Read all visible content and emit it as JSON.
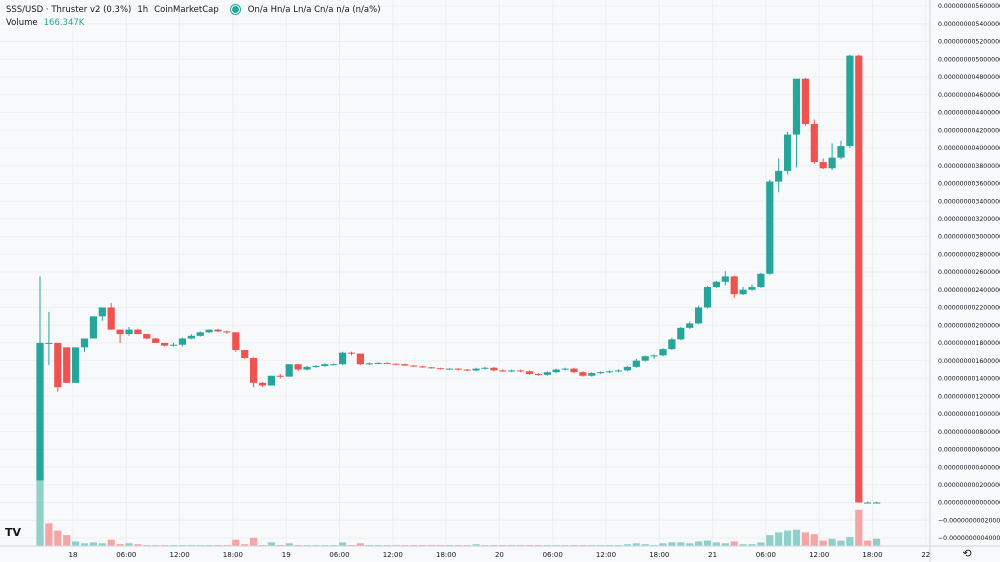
{
  "legend": {
    "symbol": "SSS/USD · Thruster v2 (0.3%)",
    "interval": "1h",
    "source": "CoinMarketCap",
    "ohlc": "On/a Hn/a Ln/a Cn/a n/a (n/a%)",
    "volume_label": "Volume",
    "volume_value": "166.347K"
  },
  "icons": {
    "logo": "tradingview-logo-icon",
    "settings": "auto-scale-settings-icon"
  },
  "logo_text": "TV",
  "colors": {
    "up": "#26a69a",
    "down": "#ef5350",
    "up_volume": "#8fd0c9",
    "down_volume": "#f5a5a3",
    "grid": "#eceef2",
    "background": "#f8f9fa"
  },
  "chart_data": {
    "type": "candlestick",
    "y_axis_ticks": [
      "0.000000005600000",
      "0.000000005400000",
      "0.000000005200000",
      "0.000000005000000",
      "0.000000004800000",
      "0.000000004600000",
      "0.000000004400000",
      "0.000000004200000",
      "0.000000004000000",
      "0.000000003800000",
      "0.000000003600000",
      "0.000000003400000",
      "0.000000003200000",
      "0.000000003000000",
      "0.000000002800000",
      "0.000000002600000",
      "0.000000002400000",
      "0.000000002200000",
      "0.000000002000000",
      "0.000000001800000",
      "0.000000001600000",
      "0.000000001400000",
      "0.000000001200000",
      "0.000000001000000",
      "0.000000000800000",
      "0.000000000600000",
      "0.000000000400000",
      "0.000000000200000",
      "0.000000000000000",
      "−0.000000000200000",
      "−0.000000000400000"
    ],
    "ylim": [
      -0.4,
      5.6
    ],
    "y_unit_note": "values in units of 1e-9 USD",
    "x_axis_labels": [
      "18",
      "06:00",
      "12:00",
      "18:00",
      "19",
      "06:00",
      "12:00",
      "18:00",
      "20",
      "06:00",
      "12:00",
      "18:00",
      "21",
      "06:00",
      "12:00",
      "18:00",
      "22"
    ],
    "candles": [
      {
        "o": 0.25,
        "h": 2.55,
        "l": 0.25,
        "c": 1.8
      },
      {
        "o": 1.8,
        "h": 2.15,
        "l": 1.55,
        "c": 1.8
      },
      {
        "o": 1.8,
        "h": 1.8,
        "l": 1.25,
        "c": 1.3
      },
      {
        "o": 1.75,
        "h": 1.75,
        "l": 1.35,
        "c": 1.35
      },
      {
        "o": 1.35,
        "h": 1.75,
        "l": 1.35,
        "c": 1.75
      },
      {
        "o": 1.75,
        "h": 1.85,
        "l": 1.7,
        "c": 1.85
      },
      {
        "o": 1.85,
        "h": 2.1,
        "l": 1.85,
        "c": 2.1
      },
      {
        "o": 2.1,
        "h": 2.2,
        "l": 2.05,
        "c": 2.2
      },
      {
        "o": 2.2,
        "h": 2.25,
        "l": 1.95,
        "c": 1.95
      },
      {
        "o": 1.95,
        "h": 1.95,
        "l": 1.8,
        "c": 1.9
      },
      {
        "o": 1.9,
        "h": 1.98,
        "l": 1.88,
        "c": 1.95
      },
      {
        "o": 1.95,
        "h": 1.96,
        "l": 1.9,
        "c": 1.9
      },
      {
        "o": 1.9,
        "h": 1.9,
        "l": 1.84,
        "c": 1.85
      },
      {
        "o": 1.85,
        "h": 1.86,
        "l": 1.8,
        "c": 1.8
      },
      {
        "o": 1.8,
        "h": 1.8,
        "l": 1.76,
        "c": 1.77
      },
      {
        "o": 1.77,
        "h": 1.8,
        "l": 1.76,
        "c": 1.78
      },
      {
        "o": 1.78,
        "h": 1.86,
        "l": 1.76,
        "c": 1.85
      },
      {
        "o": 1.85,
        "h": 1.9,
        "l": 1.84,
        "c": 1.88
      },
      {
        "o": 1.88,
        "h": 1.93,
        "l": 1.87,
        "c": 1.92
      },
      {
        "o": 1.92,
        "h": 1.95,
        "l": 1.91,
        "c": 1.95
      },
      {
        "o": 1.95,
        "h": 1.96,
        "l": 1.92,
        "c": 1.93
      },
      {
        "o": 1.93,
        "h": 1.94,
        "l": 1.9,
        "c": 1.92
      },
      {
        "o": 1.92,
        "h": 1.92,
        "l": 1.7,
        "c": 1.72
      },
      {
        "o": 1.72,
        "h": 1.72,
        "l": 1.62,
        "c": 1.63
      },
      {
        "o": 1.63,
        "h": 1.64,
        "l": 1.3,
        "c": 1.35
      },
      {
        "o": 1.35,
        "h": 1.36,
        "l": 1.3,
        "c": 1.32
      },
      {
        "o": 1.32,
        "h": 1.43,
        "l": 1.32,
        "c": 1.43
      },
      {
        "o": 1.43,
        "h": 1.45,
        "l": 1.4,
        "c": 1.42
      },
      {
        "o": 1.42,
        "h": 1.56,
        "l": 1.42,
        "c": 1.56
      },
      {
        "o": 1.56,
        "h": 1.56,
        "l": 1.48,
        "c": 1.5
      },
      {
        "o": 1.5,
        "h": 1.54,
        "l": 1.49,
        "c": 1.53
      },
      {
        "o": 1.53,
        "h": 1.55,
        "l": 1.52,
        "c": 1.54
      },
      {
        "o": 1.54,
        "h": 1.57,
        "l": 1.53,
        "c": 1.56
      },
      {
        "o": 1.56,
        "h": 1.57,
        "l": 1.55,
        "c": 1.56
      },
      {
        "o": 1.56,
        "h": 1.7,
        "l": 1.55,
        "c": 1.69
      },
      {
        "o": 1.69,
        "h": 1.7,
        "l": 1.66,
        "c": 1.68
      },
      {
        "o": 1.68,
        "h": 1.68,
        "l": 1.55,
        "c": 1.56
      },
      {
        "o": 1.56,
        "h": 1.58,
        "l": 1.55,
        "c": 1.57
      },
      {
        "o": 1.57,
        "h": 1.58,
        "l": 1.56,
        "c": 1.575
      },
      {
        "o": 1.575,
        "h": 1.58,
        "l": 1.56,
        "c": 1.565
      },
      {
        "o": 1.565,
        "h": 1.57,
        "l": 1.55,
        "c": 1.56
      },
      {
        "o": 1.56,
        "h": 1.565,
        "l": 1.54,
        "c": 1.545
      },
      {
        "o": 1.545,
        "h": 1.55,
        "l": 1.53,
        "c": 1.535
      },
      {
        "o": 1.535,
        "h": 1.54,
        "l": 1.52,
        "c": 1.525
      },
      {
        "o": 1.525,
        "h": 1.53,
        "l": 1.51,
        "c": 1.515
      },
      {
        "o": 1.515,
        "h": 1.52,
        "l": 1.5,
        "c": 1.505
      },
      {
        "o": 1.505,
        "h": 1.515,
        "l": 1.5,
        "c": 1.51
      },
      {
        "o": 1.51,
        "h": 1.515,
        "l": 1.49,
        "c": 1.5
      },
      {
        "o": 1.5,
        "h": 1.505,
        "l": 1.48,
        "c": 1.49
      },
      {
        "o": 1.49,
        "h": 1.52,
        "l": 1.48,
        "c": 1.51
      },
      {
        "o": 1.51,
        "h": 1.53,
        "l": 1.5,
        "c": 1.52
      },
      {
        "o": 1.52,
        "h": 1.53,
        "l": 1.48,
        "c": 1.49
      },
      {
        "o": 1.49,
        "h": 1.5,
        "l": 1.47,
        "c": 1.48
      },
      {
        "o": 1.48,
        "h": 1.5,
        "l": 1.47,
        "c": 1.49
      },
      {
        "o": 1.49,
        "h": 1.5,
        "l": 1.47,
        "c": 1.48
      },
      {
        "o": 1.48,
        "h": 1.49,
        "l": 1.44,
        "c": 1.45
      },
      {
        "o": 1.45,
        "h": 1.46,
        "l": 1.43,
        "c": 1.44
      },
      {
        "o": 1.44,
        "h": 1.48,
        "l": 1.43,
        "c": 1.47
      },
      {
        "o": 1.47,
        "h": 1.51,
        "l": 1.46,
        "c": 1.5
      },
      {
        "o": 1.5,
        "h": 1.52,
        "l": 1.49,
        "c": 1.51
      },
      {
        "o": 1.51,
        "h": 1.52,
        "l": 1.46,
        "c": 1.47
      },
      {
        "o": 1.47,
        "h": 1.48,
        "l": 1.42,
        "c": 1.43
      },
      {
        "o": 1.43,
        "h": 1.47,
        "l": 1.42,
        "c": 1.46
      },
      {
        "o": 1.46,
        "h": 1.48,
        "l": 1.45,
        "c": 1.47
      },
      {
        "o": 1.47,
        "h": 1.49,
        "l": 1.46,
        "c": 1.48
      },
      {
        "o": 1.48,
        "h": 1.5,
        "l": 1.47,
        "c": 1.49
      },
      {
        "o": 1.49,
        "h": 1.54,
        "l": 1.48,
        "c": 1.53
      },
      {
        "o": 1.53,
        "h": 1.62,
        "l": 1.52,
        "c": 1.6
      },
      {
        "o": 1.6,
        "h": 1.66,
        "l": 1.59,
        "c": 1.65
      },
      {
        "o": 1.65,
        "h": 1.67,
        "l": 1.62,
        "c": 1.66
      },
      {
        "o": 1.66,
        "h": 1.74,
        "l": 1.65,
        "c": 1.73
      },
      {
        "o": 1.73,
        "h": 1.86,
        "l": 1.72,
        "c": 1.84
      },
      {
        "o": 1.84,
        "h": 1.98,
        "l": 1.83,
        "c": 1.97
      },
      {
        "o": 1.97,
        "h": 2.04,
        "l": 1.96,
        "c": 2.02
      },
      {
        "o": 2.02,
        "h": 2.22,
        "l": 2.01,
        "c": 2.2
      },
      {
        "o": 2.2,
        "h": 2.44,
        "l": 2.19,
        "c": 2.43
      },
      {
        "o": 2.43,
        "h": 2.5,
        "l": 2.42,
        "c": 2.49
      },
      {
        "o": 2.49,
        "h": 2.61,
        "l": 2.45,
        "c": 2.55
      },
      {
        "o": 2.55,
        "h": 2.56,
        "l": 2.31,
        "c": 2.35
      },
      {
        "o": 2.35,
        "h": 2.43,
        "l": 2.34,
        "c": 2.4
      },
      {
        "o": 2.4,
        "h": 2.46,
        "l": 2.39,
        "c": 2.43
      },
      {
        "o": 2.43,
        "h": 2.59,
        "l": 2.42,
        "c": 2.58
      },
      {
        "o": 2.58,
        "h": 3.64,
        "l": 2.57,
        "c": 3.62
      },
      {
        "o": 3.62,
        "h": 3.88,
        "l": 3.5,
        "c": 3.74
      },
      {
        "o": 3.74,
        "h": 4.18,
        "l": 3.7,
        "c": 4.15
      },
      {
        "o": 4.15,
        "h": 4.78,
        "l": 3.78,
        "c": 4.78
      },
      {
        "o": 4.78,
        "h": 4.79,
        "l": 4.25,
        "c": 4.27
      },
      {
        "o": 4.27,
        "h": 4.32,
        "l": 3.82,
        "c": 3.84
      },
      {
        "o": 3.84,
        "h": 3.88,
        "l": 3.76,
        "c": 3.77
      },
      {
        "o": 3.77,
        "h": 4.05,
        "l": 3.75,
        "c": 3.89
      },
      {
        "o": 3.89,
        "h": 4.08,
        "l": 3.87,
        "c": 4.02
      },
      {
        "o": 4.02,
        "h": 5.05,
        "l": 4.0,
        "c": 5.04
      },
      {
        "o": 5.04,
        "h": 5.05,
        "l": 0.0,
        "c": 0.0
      },
      {
        "o": 0.0,
        "h": 0.01,
        "l": -0.01,
        "c": 0.0
      },
      {
        "o": 0.0,
        "h": 0.01,
        "l": -0.01,
        "c": 0.0
      }
    ],
    "volume": [
      {
        "v": 75,
        "up": true
      },
      {
        "v": 25,
        "up": false
      },
      {
        "v": 17,
        "up": false
      },
      {
        "v": 12,
        "up": false
      },
      {
        "v": 5,
        "up": true
      },
      {
        "v": 3,
        "up": true
      },
      {
        "v": 4,
        "up": true
      },
      {
        "v": 3,
        "up": true
      },
      {
        "v": 7,
        "up": false
      },
      {
        "v": 2,
        "up": false
      },
      {
        "v": 3,
        "up": true
      },
      {
        "v": 2,
        "up": false
      },
      {
        "v": 1,
        "up": false
      },
      {
        "v": 1,
        "up": false
      },
      {
        "v": 1,
        "up": false
      },
      {
        "v": 1,
        "up": true
      },
      {
        "v": 1,
        "up": true
      },
      {
        "v": 1,
        "up": true
      },
      {
        "v": 1,
        "up": true
      },
      {
        "v": 1,
        "up": true
      },
      {
        "v": 1,
        "up": false
      },
      {
        "v": 1,
        "up": false
      },
      {
        "v": 7,
        "up": false
      },
      {
        "v": 2,
        "up": false
      },
      {
        "v": 9,
        "up": false
      },
      {
        "v": 1,
        "up": false
      },
      {
        "v": 4,
        "up": true
      },
      {
        "v": 1,
        "up": false
      },
      {
        "v": 3,
        "up": true
      },
      {
        "v": 1,
        "up": false
      },
      {
        "v": 1,
        "up": true
      },
      {
        "v": 1,
        "up": true
      },
      {
        "v": 1,
        "up": true
      },
      {
        "v": 1,
        "up": true
      },
      {
        "v": 4,
        "up": true
      },
      {
        "v": 1,
        "up": false
      },
      {
        "v": 3,
        "up": false
      },
      {
        "v": 1,
        "up": true
      },
      {
        "v": 1,
        "up": true
      },
      {
        "v": 1,
        "up": false
      },
      {
        "v": 1,
        "up": false
      },
      {
        "v": 1,
        "up": false
      },
      {
        "v": 1,
        "up": false
      },
      {
        "v": 1,
        "up": false
      },
      {
        "v": 1,
        "up": false
      },
      {
        "v": 1,
        "up": false
      },
      {
        "v": 1,
        "up": true
      },
      {
        "v": 1,
        "up": false
      },
      {
        "v": 1,
        "up": false
      },
      {
        "v": 2,
        "up": true
      },
      {
        "v": 1,
        "up": true
      },
      {
        "v": 1,
        "up": false
      },
      {
        "v": 1,
        "up": false
      },
      {
        "v": 1,
        "up": true
      },
      {
        "v": 1,
        "up": false
      },
      {
        "v": 1,
        "up": false
      },
      {
        "v": 1,
        "up": false
      },
      {
        "v": 1,
        "up": true
      },
      {
        "v": 1,
        "up": true
      },
      {
        "v": 1,
        "up": true
      },
      {
        "v": 1,
        "up": false
      },
      {
        "v": 1,
        "up": false
      },
      {
        "v": 1,
        "up": true
      },
      {
        "v": 1,
        "up": true
      },
      {
        "v": 1,
        "up": true
      },
      {
        "v": 1,
        "up": true
      },
      {
        "v": 2,
        "up": true
      },
      {
        "v": 3,
        "up": true
      },
      {
        "v": 2,
        "up": true
      },
      {
        "v": 1,
        "up": true
      },
      {
        "v": 3,
        "up": true
      },
      {
        "v": 4,
        "up": true
      },
      {
        "v": 4,
        "up": true
      },
      {
        "v": 3,
        "up": true
      },
      {
        "v": 5,
        "up": true
      },
      {
        "v": 6,
        "up": true
      },
      {
        "v": 4,
        "up": true
      },
      {
        "v": 3,
        "up": true
      },
      {
        "v": 5,
        "up": false
      },
      {
        "v": 2,
        "up": true
      },
      {
        "v": 2,
        "up": true
      },
      {
        "v": 4,
        "up": true
      },
      {
        "v": 12,
        "up": true
      },
      {
        "v": 15,
        "up": true
      },
      {
        "v": 17,
        "up": true
      },
      {
        "v": 18,
        "up": true
      },
      {
        "v": 15,
        "up": false
      },
      {
        "v": 13,
        "up": false
      },
      {
        "v": 6,
        "up": false
      },
      {
        "v": 8,
        "up": true
      },
      {
        "v": 6,
        "up": true
      },
      {
        "v": 10,
        "up": true
      },
      {
        "v": 40,
        "up": false
      },
      {
        "v": 6,
        "up": false
      },
      {
        "v": 8,
        "up": true
      }
    ]
  }
}
